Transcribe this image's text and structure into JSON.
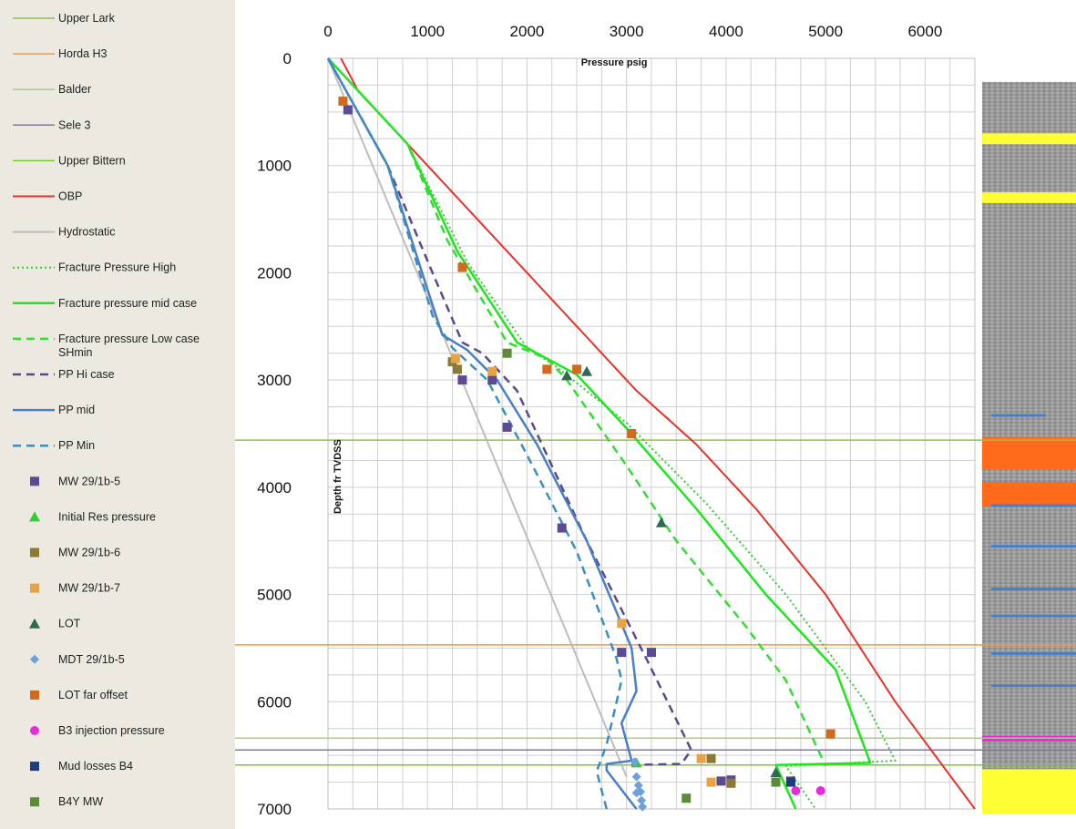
{
  "chart_data": {
    "type": "line",
    "xlabel": "Pressure psig",
    "ylabel": "Depth fr TVDSS",
    "xlim": [
      0,
      6500
    ],
    "ylim": [
      7000,
      0
    ],
    "x_ticks": [
      0,
      1000,
      2000,
      3000,
      4000,
      5000,
      6000
    ],
    "y_ticks": [
      0,
      1000,
      2000,
      3000,
      4000,
      5000,
      6000,
      7000
    ],
    "x_axis_position": "top",
    "grid": true,
    "legend_position": "left",
    "series": [
      {
        "name": "Upper Lark",
        "kind": "hline",
        "color": "#92c050",
        "y": 3560
      },
      {
        "name": "Horda H3",
        "kind": "hline",
        "color": "#f79646",
        "y": 5470
      },
      {
        "name": "Balder",
        "kind": "hline",
        "color": "#b4c49a",
        "y": 6340
      },
      {
        "name": "Sele 3",
        "kind": "hline",
        "color": "#8470b8",
        "y": 6450
      },
      {
        "name": "Upper Bittern",
        "kind": "hline",
        "color": "#7cc63a",
        "y": 6590
      },
      {
        "name": "OBP",
        "kind": "line",
        "color": "#e8312b",
        "style": "solid",
        "width": 2,
        "points": [
          [
            130,
            0
          ],
          [
            300,
            300
          ],
          [
            1000,
            1000
          ],
          [
            2000,
            2000
          ],
          [
            2700,
            2700
          ],
          [
            3100,
            3100
          ],
          [
            3700,
            3600
          ],
          [
            4300,
            4200
          ],
          [
            5000,
            5000
          ],
          [
            5700,
            6000
          ],
          [
            6500,
            7000
          ]
        ]
      },
      {
        "name": "Hydrostatic",
        "kind": "line",
        "color": "#bdbdbd",
        "style": "solid",
        "width": 2,
        "points": [
          [
            0,
            0
          ],
          [
            3000,
            6700
          ]
        ]
      },
      {
        "name": "Fracture Pressure High",
        "kind": "line",
        "color": "#33cc33",
        "style": "dotted",
        "width": 2,
        "points": [
          [
            0,
            0
          ],
          [
            400,
            400
          ],
          [
            800,
            800
          ],
          [
            1400,
            1900
          ],
          [
            2000,
            2700
          ],
          [
            2300,
            2880
          ],
          [
            3000,
            3400
          ],
          [
            3800,
            4150
          ],
          [
            4600,
            5000
          ],
          [
            5400,
            6000
          ],
          [
            5700,
            6550
          ],
          [
            4600,
            6600
          ],
          [
            4900,
            7000
          ]
        ]
      },
      {
        "name": "Fracture pressure mid case",
        "kind": "line",
        "color": "#1ee61e",
        "style": "solid",
        "width": 2.5,
        "points": [
          [
            0,
            0
          ],
          [
            400,
            400
          ],
          [
            800,
            800
          ],
          [
            1300,
            1800
          ],
          [
            1900,
            2650
          ],
          [
            2500,
            2950
          ],
          [
            3000,
            3450
          ],
          [
            3700,
            4200
          ],
          [
            4400,
            5000
          ],
          [
            5100,
            5700
          ],
          [
            5300,
            6200
          ],
          [
            5450,
            6570
          ],
          [
            4500,
            6590
          ],
          [
            4700,
            7000
          ]
        ]
      },
      {
        "name": "Fracture pressure Low case SHmin",
        "kind": "line",
        "color": "#33dd33",
        "style": "dashed",
        "width": 2.5,
        "points": [
          [
            0,
            0
          ],
          [
            400,
            400
          ],
          [
            800,
            800
          ],
          [
            1200,
            1700
          ],
          [
            1800,
            2650
          ],
          [
            2200,
            2800
          ],
          [
            2400,
            3000
          ],
          [
            3000,
            3800
          ],
          [
            3500,
            4500
          ],
          [
            4200,
            5300
          ],
          [
            4600,
            5800
          ],
          [
            5000,
            6600
          ]
        ]
      },
      {
        "name": "PP Hi case",
        "kind": "line",
        "color": "#5a4a8a",
        "style": "dashed",
        "width": 2.5,
        "points": [
          [
            0,
            0
          ],
          [
            600,
            1000
          ],
          [
            1050,
            2000
          ],
          [
            1350,
            2650
          ],
          [
            1550,
            2750
          ],
          [
            1900,
            3100
          ],
          [
            2600,
            4500
          ],
          [
            3200,
            5600
          ],
          [
            3650,
            6450
          ],
          [
            3550,
            6580
          ],
          [
            3050,
            6590
          ]
        ]
      },
      {
        "name": "PP mid",
        "kind": "line",
        "color": "#4a7fc8",
        "style": "solid",
        "width": 2.5,
        "points": [
          [
            0,
            0
          ],
          [
            600,
            1000
          ],
          [
            1050,
            2300
          ],
          [
            1150,
            2580
          ],
          [
            1400,
            2720
          ],
          [
            1700,
            3000
          ],
          [
            2100,
            3600
          ],
          [
            2600,
            4500
          ],
          [
            3050,
            5500
          ],
          [
            3100,
            5900
          ],
          [
            2950,
            6200
          ],
          [
            3050,
            6550
          ],
          [
            2800,
            6580
          ],
          [
            2800,
            6640
          ],
          [
            3100,
            7000
          ]
        ]
      },
      {
        "name": "PP Min",
        "kind": "line",
        "color": "#3a8fc0",
        "style": "dashed",
        "width": 2.5,
        "points": [
          [
            0,
            0
          ],
          [
            600,
            1000
          ],
          [
            1050,
            2400
          ],
          [
            1250,
            2700
          ],
          [
            1600,
            3000
          ],
          [
            2000,
            3700
          ],
          [
            2500,
            4600
          ],
          [
            2900,
            5600
          ],
          [
            2950,
            5800
          ],
          [
            2900,
            6000
          ],
          [
            2800,
            6400
          ],
          [
            2700,
            6650
          ],
          [
            2800,
            7000
          ]
        ]
      },
      {
        "name": "MW 29/1b-5",
        "kind": "scatter",
        "marker": "square",
        "color": "#5d4a94",
        "points": [
          [
            200,
            480
          ],
          [
            1350,
            3000
          ],
          [
            1650,
            3000
          ],
          [
            1800,
            3440
          ],
          [
            2350,
            4380
          ],
          [
            2950,
            5540
          ],
          [
            3250,
            5540
          ],
          [
            3950,
            6740
          ],
          [
            4050,
            6730
          ],
          [
            4650,
            6740
          ]
        ]
      },
      {
        "name": "Initial Res pressure",
        "kind": "scatter",
        "marker": "triangle",
        "color": "#33cc33",
        "points": [
          [
            3100,
            6570
          ]
        ]
      },
      {
        "name": "MW 29/1b-6",
        "kind": "scatter",
        "marker": "square",
        "color": "#8a7a36",
        "points": [
          [
            1250,
            2830
          ],
          [
            1300,
            2900
          ],
          [
            4050,
            6760
          ],
          [
            3850,
            6530
          ]
        ]
      },
      {
        "name": "MW 29/1b-7",
        "kind": "scatter",
        "marker": "square",
        "color": "#e8a24a",
        "points": [
          [
            1280,
            2800
          ],
          [
            1650,
            2920
          ],
          [
            2950,
            5270
          ],
          [
            3750,
            6530
          ],
          [
            3850,
            6750
          ]
        ]
      },
      {
        "name": "LOT",
        "kind": "scatter",
        "marker": "triangle",
        "color": "#2e6b52",
        "points": [
          [
            2600,
            2920
          ],
          [
            2400,
            2960
          ],
          [
            3350,
            4330
          ],
          [
            4500,
            6660
          ]
        ]
      },
      {
        "name": "MDT 29/1b-5",
        "kind": "scatter",
        "marker": "diamond",
        "color": "#6fa0d8",
        "points": [
          [
            3080,
            6560
          ],
          [
            3100,
            6700
          ],
          [
            3120,
            6780
          ],
          [
            3140,
            6840
          ],
          [
            3150,
            6920
          ],
          [
            3160,
            6980
          ],
          [
            3100,
            6850
          ]
        ]
      },
      {
        "name": "LOT far offset",
        "kind": "scatter",
        "marker": "square",
        "color": "#d2691e",
        "points": [
          [
            150,
            400
          ],
          [
            1350,
            1950
          ],
          [
            2200,
            2900
          ],
          [
            2500,
            2900
          ],
          [
            3050,
            3500
          ],
          [
            5050,
            6300
          ]
        ]
      },
      {
        "name": "B3 injection pressure",
        "kind": "scatter",
        "marker": "circle",
        "color": "#e62bdb",
        "points": [
          [
            4700,
            6830
          ],
          [
            4950,
            6830
          ]
        ]
      },
      {
        "name": "Mud losses B4",
        "kind": "scatter",
        "marker": "square",
        "color": "#1f3d7a",
        "points": [
          [
            4650,
            6750
          ]
        ]
      },
      {
        "name": "B4Y MW",
        "kind": "scatter",
        "marker": "square",
        "color": "#5b8c3a",
        "points": [
          [
            1800,
            2750
          ],
          [
            3600,
            6900
          ],
          [
            4500,
            6750
          ]
        ]
      }
    ],
    "lithology_column": {
      "background": "#8c8c8c",
      "bands": [
        {
          "top": 700,
          "bottom": 800,
          "color": "#ffff33",
          "type": "sand"
        },
        {
          "top": 1250,
          "bottom": 1350,
          "color": "#ffff33",
          "type": "sand"
        },
        {
          "top": 3530,
          "bottom": 3830,
          "color": "#ff6b1a",
          "type": "orange"
        },
        {
          "top": 3950,
          "bottom": 4180,
          "color": "#ff6b1a",
          "type": "orange"
        },
        {
          "top": 6320,
          "bottom": 6370,
          "color": "#e62bdb",
          "type": "injection"
        },
        {
          "top": 6630,
          "bottom": 7050,
          "color": "#ffff33",
          "type": "sand"
        }
      ],
      "stringers": [
        3330,
        4170,
        4550,
        4950,
        5200,
        5550,
        5850
      ]
    }
  }
}
